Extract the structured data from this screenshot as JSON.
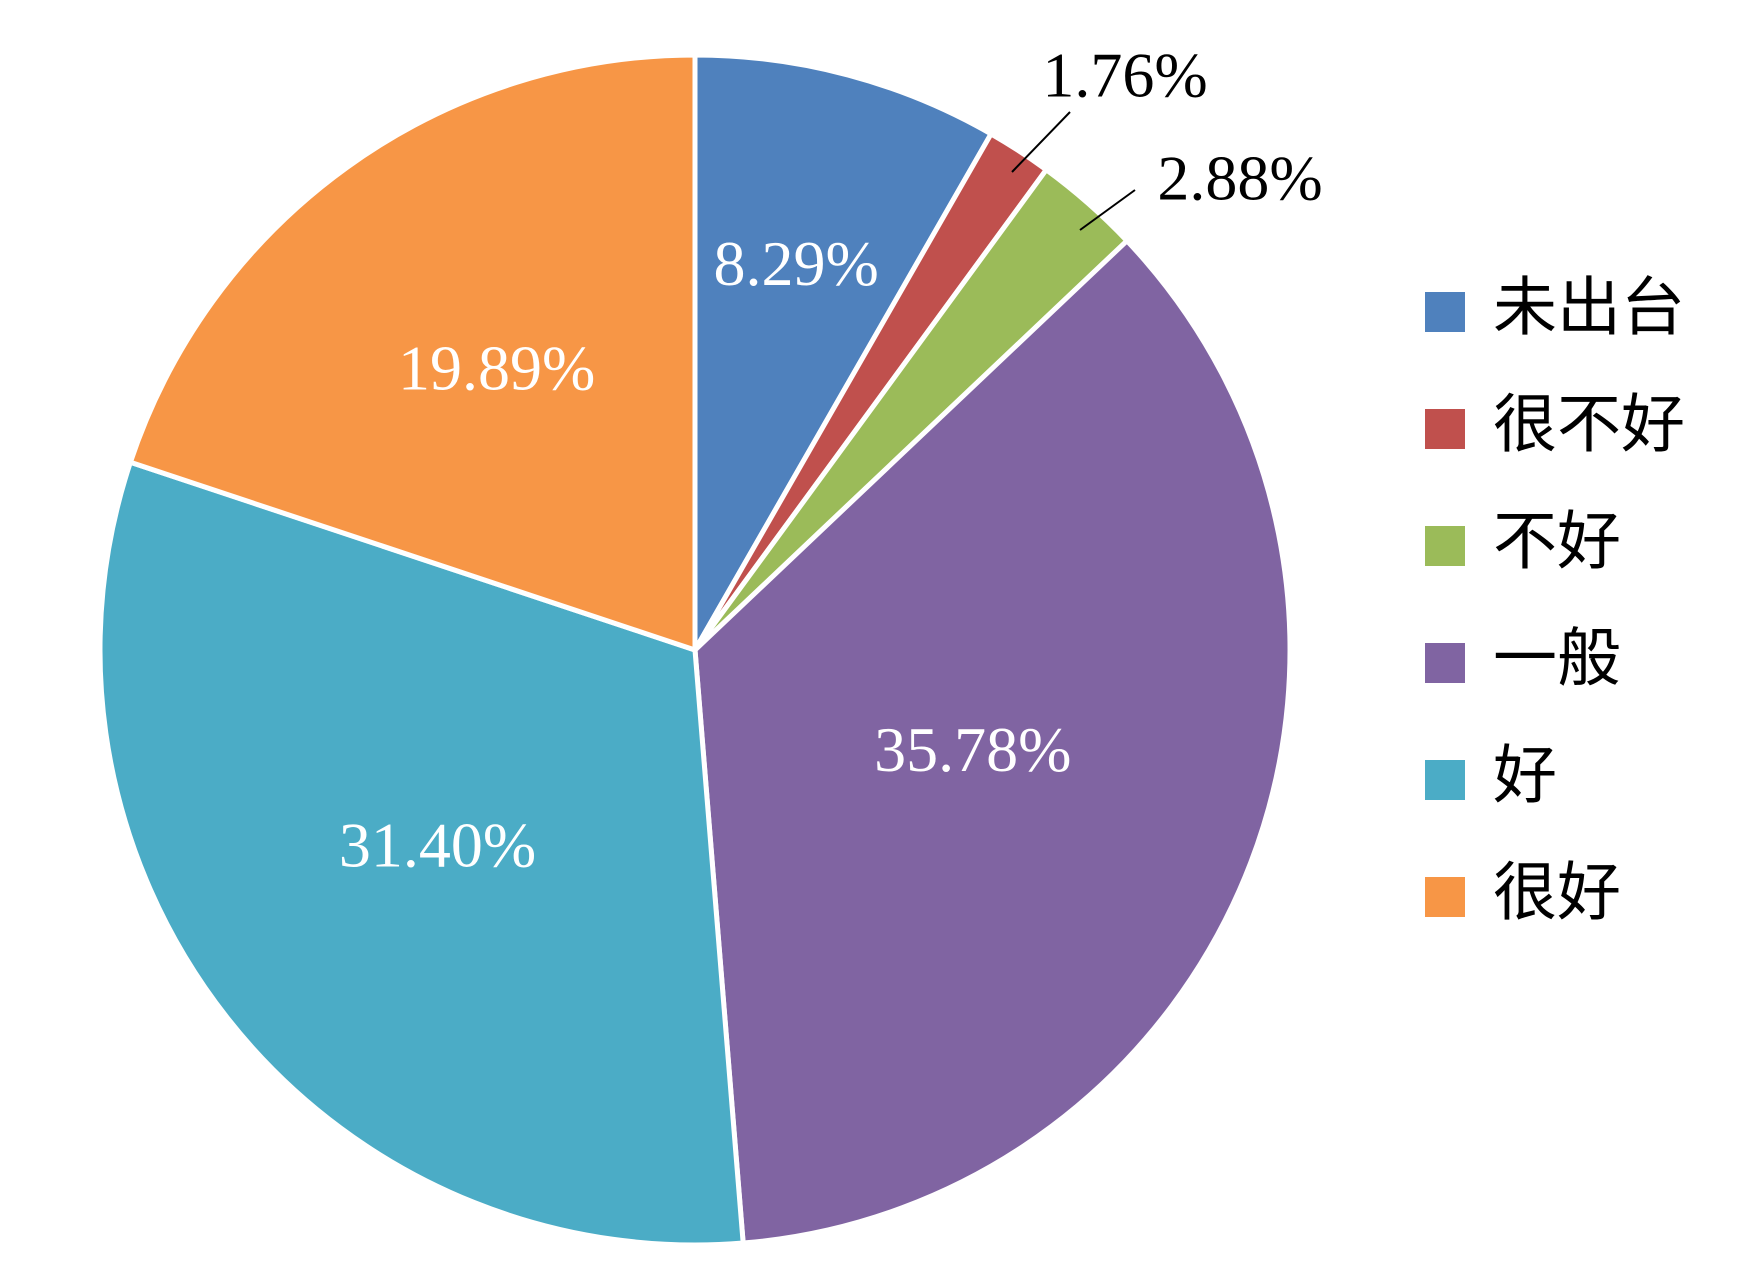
{
  "chart_data": {
    "type": "pie",
    "categories": [
      "未出台",
      "很不好",
      "不好",
      "一般",
      "好",
      "很好"
    ],
    "values": [
      8.29,
      1.76,
      2.88,
      35.78,
      31.4,
      19.89
    ],
    "data_labels": [
      "8.29%",
      "1.76%",
      "2.88%",
      "35.78%",
      "31.40%",
      "19.89%"
    ],
    "colors": [
      "#4F81BD",
      "#C0504D",
      "#9BBB59",
      "#8064A2",
      "#4BACC6",
      "#F79646"
    ],
    "start_angle_deg": 0,
    "direction": "clockwise",
    "legend_position": "right",
    "label_placement": [
      "inside",
      "outside",
      "outside",
      "inside",
      "inside",
      "inside"
    ]
  }
}
